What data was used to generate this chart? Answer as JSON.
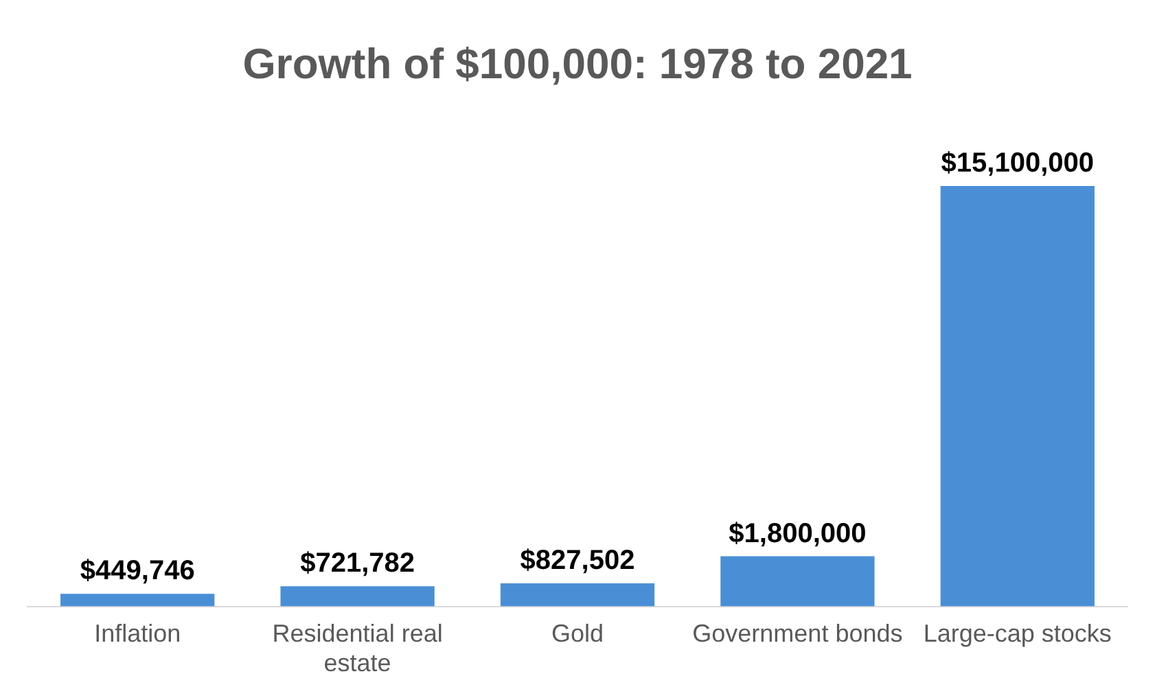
{
  "chart_data": {
    "type": "bar",
    "title": "Growth of $100,000: 1978 to 2021",
    "categories": [
      "Inflation",
      "Residential real estate",
      "Gold",
      "Government bonds",
      "Large-cap stocks"
    ],
    "values": [
      449746,
      721782,
      827502,
      1800000,
      15100000
    ],
    "value_labels": [
      "$449,746",
      "$721,782",
      "$827,502",
      "$1,800,000",
      "$15,100,000"
    ],
    "color": "#4a8fd6",
    "grid": false,
    "tick_labels": "x",
    "legend": false
  }
}
